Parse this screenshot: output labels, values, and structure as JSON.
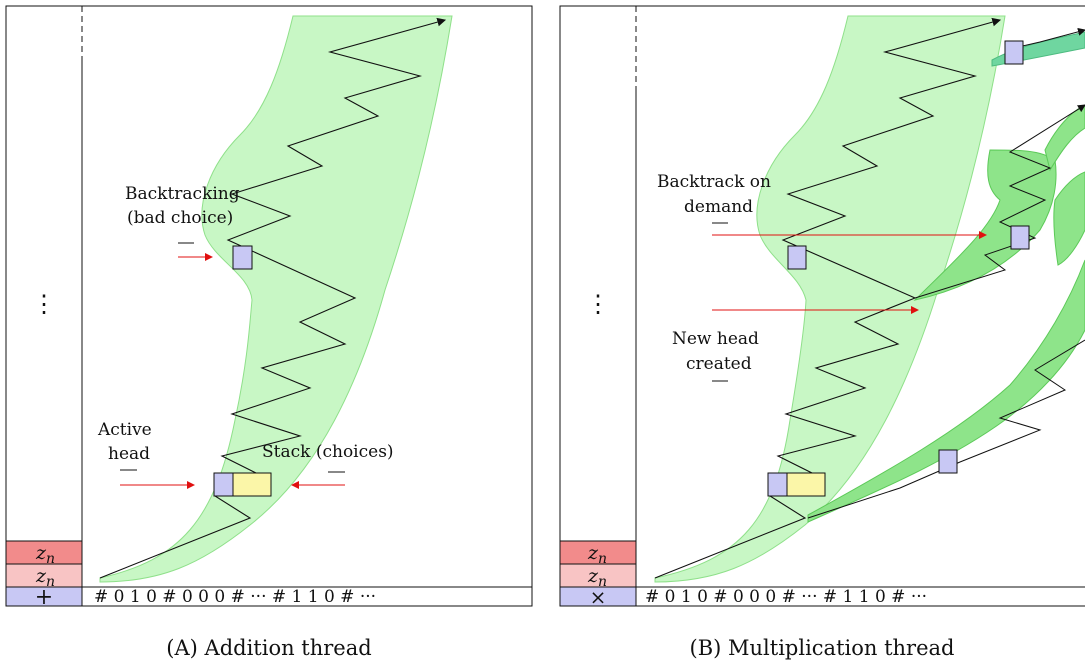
{
  "panel_a": {
    "caption": "(A) Addition thread",
    "vdots": "⋮",
    "stack_cells": [
      "z",
      "z"
    ],
    "stack_sub": [
      "n",
      "n"
    ],
    "operator": "+",
    "tape": "# 0 1 0 # 0 0 0 # ··· # 1 1 0 # ···",
    "labels": {
      "backtracking_1": "Backtracking",
      "backtracking_2": "(bad choice)",
      "active_1": "Active",
      "active_2": "head",
      "stack_choices": "Stack (choices)"
    },
    "colors": {
      "band": "#c8f7c5",
      "band_stroke": "#8fe08a",
      "head": "#c8c8f4",
      "stack": "#fbf6a8"
    }
  },
  "panel_b": {
    "caption": "(B) Multiplication thread",
    "vdots": "⋮",
    "stack_cells": [
      "z",
      "z"
    ],
    "stack_sub": [
      "n",
      "n"
    ],
    "operator": "×",
    "tape": "# 0 1 0 # 0 0 0 # ··· # 1 1 0 # ···",
    "labels": {
      "backtrack_1": "Backtrack on",
      "backtrack_2": "demand",
      "newhead_1": "New head",
      "newhead_2": "created"
    },
    "colors": {
      "band": "#c8f7c5",
      "band2": "#8ee48a",
      "band3": "#6fd6a0",
      "head": "#c8c8f4"
    }
  }
}
